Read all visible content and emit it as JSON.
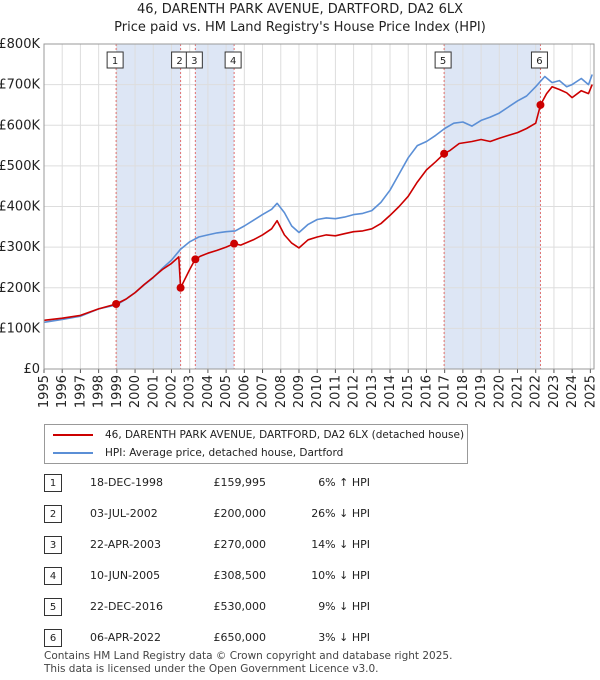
{
  "chart_data": {
    "type": "line",
    "title": "46, DARENTH PARK AVENUE, DARTFORD, DA2 6LX",
    "subtitle": "Price paid vs. HM Land Registry's House Price Index (HPI)",
    "xlabel": "",
    "ylabel": "",
    "xlim": [
      1995,
      2025.2
    ],
    "ylim": [
      0,
      800000
    ],
    "x_ticks": [
      "1995",
      "1996",
      "1997",
      "1998",
      "1999",
      "2000",
      "2001",
      "2002",
      "2003",
      "2004",
      "2005",
      "2006",
      "2007",
      "2008",
      "2009",
      "2010",
      "2011",
      "2012",
      "2013",
      "2014",
      "2015",
      "2016",
      "2017",
      "2018",
      "2019",
      "2020",
      "2021",
      "2022",
      "2023",
      "2024",
      "2025"
    ],
    "y_ticks": [
      "£0",
      "£100K",
      "£200K",
      "£300K",
      "£400K",
      "£500K",
      "£600K",
      "£700K",
      "£800K"
    ],
    "grid": true,
    "colors": {
      "price": "#cc0000",
      "hpi": "#5b8fd6",
      "shade": "#dde6f5",
      "vline": "#e07070"
    },
    "series": [
      {
        "name": "46, DARENTH PARK AVENUE, DARTFORD, DA2 6LX (detached house)",
        "x": [
          1995.0,
          1996.0,
          1997.0,
          1998.0,
          1998.96,
          1999.5,
          2000.0,
          2000.5,
          2001.0,
          2001.5,
          2002.0,
          2002.4,
          2002.5,
          2003.0,
          2003.3,
          2003.6,
          2004.0,
          2004.5,
          2005.0,
          2005.44,
          2005.8,
          2006.5,
          2007.0,
          2007.5,
          2007.8,
          2008.2,
          2008.6,
          2009.0,
          2009.5,
          2010.0,
          2010.5,
          2011.0,
          2011.5,
          2012.0,
          2012.5,
          2013.0,
          2013.5,
          2014.0,
          2014.5,
          2015.0,
          2015.5,
          2016.0,
          2016.5,
          2016.97,
          2017.3,
          2017.8,
          2018.5,
          2019.0,
          2019.5,
          2020.0,
          2020.5,
          2021.0,
          2021.5,
          2022.0,
          2022.26,
          2022.6,
          2022.9,
          2023.3,
          2023.7,
          2024.0,
          2024.5,
          2024.9,
          2025.1
        ],
        "values": [
          120000,
          125000,
          132000,
          148000,
          159995,
          172000,
          188000,
          208000,
          226000,
          245000,
          260000,
          276000,
          200000,
          245000,
          270000,
          278000,
          285000,
          292000,
          300000,
          308500,
          305000,
          318000,
          330000,
          345000,
          365000,
          330000,
          310000,
          298000,
          318000,
          325000,
          330000,
          328000,
          333000,
          338000,
          340000,
          345000,
          358000,
          378000,
          400000,
          425000,
          460000,
          490000,
          510000,
          530000,
          538000,
          555000,
          560000,
          565000,
          560000,
          568000,
          575000,
          582000,
          592000,
          605000,
          650000,
          678000,
          695000,
          688000,
          680000,
          668000,
          685000,
          678000,
          700000
        ]
      },
      {
        "name": "HPI: Average price, detached house, Dartford",
        "x": [
          1995.0,
          1996.0,
          1997.0,
          1998.0,
          1999.0,
          1999.5,
          2000.0,
          2000.5,
          2001.0,
          2001.5,
          2002.0,
          2002.5,
          2003.0,
          2003.5,
          2004.0,
          2004.5,
          2005.0,
          2005.5,
          2006.0,
          2006.5,
          2007.0,
          2007.5,
          2007.8,
          2008.2,
          2008.6,
          2009.0,
          2009.5,
          2010.0,
          2010.5,
          2011.0,
          2011.5,
          2012.0,
          2012.5,
          2013.0,
          2013.5,
          2014.0,
          2014.5,
          2015.0,
          2015.5,
          2016.0,
          2016.5,
          2017.0,
          2017.5,
          2018.0,
          2018.5,
          2019.0,
          2019.5,
          2020.0,
          2020.5,
          2021.0,
          2021.5,
          2022.0,
          2022.5,
          2022.9,
          2023.3,
          2023.7,
          2024.0,
          2024.5,
          2024.9,
          2025.1
        ],
        "values": [
          115000,
          122000,
          130000,
          148000,
          158000,
          172000,
          188000,
          207000,
          225000,
          248000,
          268000,
          295000,
          313000,
          325000,
          330000,
          335000,
          338000,
          340000,
          352000,
          366000,
          380000,
          393000,
          408000,
          385000,
          352000,
          336000,
          356000,
          368000,
          372000,
          370000,
          374000,
          380000,
          383000,
          390000,
          410000,
          440000,
          480000,
          520000,
          550000,
          560000,
          575000,
          592000,
          605000,
          608000,
          598000,
          612000,
          620000,
          630000,
          645000,
          660000,
          672000,
          695000,
          720000,
          705000,
          710000,
          695000,
          700000,
          715000,
          700000,
          725000
        ]
      }
    ],
    "sales": [
      {
        "n": "1",
        "x": 1998.96,
        "y": 159995
      },
      {
        "n": "2",
        "x": 2002.5,
        "y": 200000
      },
      {
        "n": "3",
        "x": 2003.31,
        "y": 270000
      },
      {
        "n": "4",
        "x": 2005.44,
        "y": 308500
      },
      {
        "n": "5",
        "x": 2016.97,
        "y": 530000
      },
      {
        "n": "6",
        "x": 2022.26,
        "y": 650000
      }
    ],
    "shaded": [
      [
        1998.96,
        2002.5
      ],
      [
        2003.31,
        2005.44
      ],
      [
        2016.97,
        2022.26
      ]
    ]
  },
  "legend": {
    "price_label": "46, DARENTH PARK AVENUE, DARTFORD, DA2 6LX (detached house)",
    "hpi_label": "HPI: Average price, detached house, Dartford"
  },
  "sales_table": [
    {
      "n": "1",
      "date": "18-DEC-1998",
      "price": "£159,995",
      "hpi": "6% ↑ HPI"
    },
    {
      "n": "2",
      "date": "03-JUL-2002",
      "price": "£200,000",
      "hpi": "26% ↓ HPI"
    },
    {
      "n": "3",
      "date": "22-APR-2003",
      "price": "£270,000",
      "hpi": "14% ↓ HPI"
    },
    {
      "n": "4",
      "date": "10-JUN-2005",
      "price": "£308,500",
      "hpi": "10% ↓ HPI"
    },
    {
      "n": "5",
      "date": "22-DEC-2016",
      "price": "£530,000",
      "hpi": "9% ↓ HPI"
    },
    {
      "n": "6",
      "date": "06-APR-2022",
      "price": "£650,000",
      "hpi": "3% ↓ HPI"
    }
  ],
  "footer": {
    "line1": "Contains HM Land Registry data © Crown copyright and database right 2025.",
    "line2": "This data is licensed under the Open Government Licence v3.0."
  }
}
